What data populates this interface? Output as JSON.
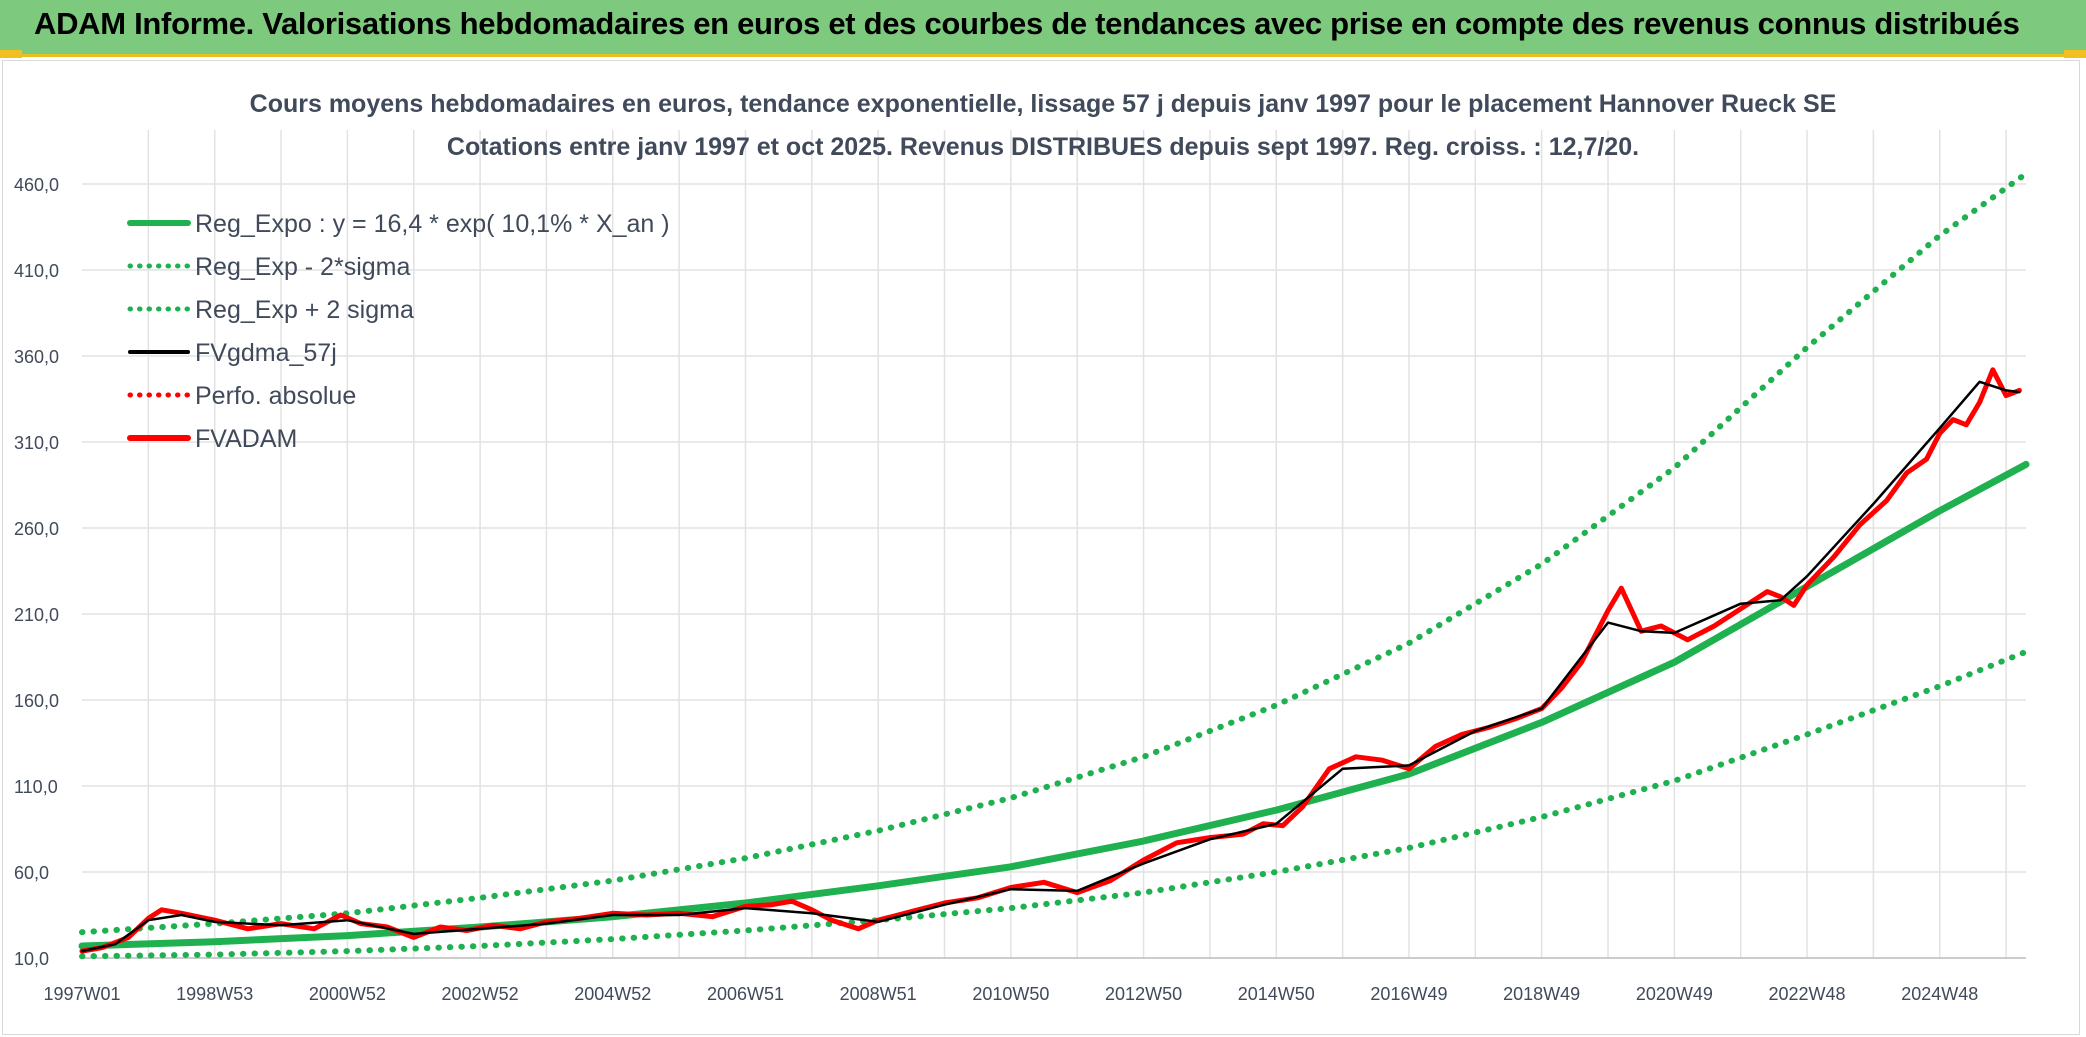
{
  "banner": {
    "title": "ADAM Informe. Valorisations hebdomadaires en euros et des courbes de tendances avec prise en compte des revenus connus distribués"
  },
  "colors": {
    "banner_bg": "#7dc97d",
    "reg_green": "#1fb04f",
    "sigma_green": "#1fb04f",
    "fvgdma": "#000000",
    "perfo": "#ff0000",
    "fvadam": "#ff0000",
    "grid": "#e2e2e2"
  },
  "chart_data": {
    "type": "line",
    "title_line1": "Cours moyens hebdomadaires en euros, tendance exponentielle, lissage 57 j depuis janv 1997 pour le placement Hannover Rueck SE",
    "title_line2": "Cotations entre janv 1997 et oct 2025. Revenus DISTRIBUES depuis sept 1997. Reg. croiss. : 12,7/20.",
    "y_ticks": [
      "10,0",
      "60,0",
      "110,0",
      "160,0",
      "210,0",
      "260,0",
      "310,0",
      "360,0",
      "410,0",
      "460,0"
    ],
    "ylim": [
      10,
      460
    ],
    "x_ticks": [
      "1997W01",
      "1998W53",
      "2000W52",
      "2002W52",
      "2004W52",
      "2006W51",
      "2008W51",
      "2010W50",
      "2012W50",
      "2014W50",
      "2016W49",
      "2018W49",
      "2020W49",
      "2022W48",
      "2024W48"
    ],
    "x_tick_years": [
      1997.0,
      1999.0,
      2001.0,
      2003.0,
      2005.0,
      2007.0,
      2009.0,
      2011.0,
      2013.0,
      2015.0,
      2017.0,
      2019.0,
      2021.0,
      2023.0,
      2025.0
    ],
    "xlim": [
      1997.0,
      2026.3
    ],
    "grid": true,
    "legend_position": "top-left",
    "legend": [
      {
        "label": "Reg_Expo : y = 16,4 * exp( 10,1% *  X_an )",
        "style": "solid-thick",
        "color": "#1fb04f"
      },
      {
        "label": "Reg_Exp - 2*sigma",
        "style": "dotted",
        "color": "#1fb04f"
      },
      {
        "label": "Reg_Exp + 2 sigma",
        "style": "dotted",
        "color": "#1fb04f"
      },
      {
        "label": "FVgdma_57j",
        "style": "solid",
        "color": "#000000"
      },
      {
        "label": "Perfo. absolue",
        "style": "dotted",
        "color": "#ff0000"
      },
      {
        "label": "FVADAM",
        "style": "solid-thick",
        "color": "#ff0000"
      }
    ],
    "series": [
      {
        "name": "Reg_Expo : y = 16,4 * exp( 10,1% *  X_an )",
        "x": [
          1997,
          1999,
          2001,
          2003,
          2005,
          2007,
          2009,
          2011,
          2013,
          2015,
          2017,
          2019,
          2021,
          2023,
          2025,
          2026.3
        ],
        "values": [
          17,
          19.5,
          23,
          28,
          34,
          42,
          52,
          63,
          78,
          96,
          117,
          147,
          182,
          226,
          270,
          297
        ]
      },
      {
        "name": "Reg_Exp - 2*sigma",
        "x": [
          1997,
          1999,
          2001,
          2003,
          2005,
          2007,
          2009,
          2011,
          2013,
          2015,
          2017,
          2019,
          2021,
          2023,
          2025,
          2026.3
        ],
        "values": [
          11,
          12,
          14,
          17,
          21,
          26,
          32,
          39,
          48,
          60,
          74,
          92,
          113,
          140,
          168,
          188
        ]
      },
      {
        "name": "Reg_Exp + 2 sigma",
        "x": [
          1997,
          1999,
          2001,
          2003,
          2005,
          2007,
          2009,
          2011,
          2013,
          2015,
          2017,
          2019,
          2021,
          2023,
          2025,
          2026.3
        ],
        "values": [
          25,
          30,
          36,
          45,
          55,
          68,
          84,
          103,
          127,
          157,
          193,
          239,
          295,
          365,
          430,
          466
        ]
      },
      {
        "name": "FVADAM",
        "x": [
          1997.0,
          1997.3,
          1997.7,
          1998.0,
          1998.2,
          1998.5,
          1999.0,
          1999.5,
          2000.0,
          2000.5,
          2000.9,
          2001.2,
          2001.6,
          2002.0,
          2002.4,
          2002.8,
          2003.2,
          2003.6,
          2004.0,
          2004.5,
          2005.0,
          2005.5,
          2006.0,
          2006.5,
          2007.0,
          2007.4,
          2007.7,
          2008.0,
          2008.3,
          2008.7,
          2009.0,
          2009.5,
          2010.0,
          2010.5,
          2011.0,
          2011.5,
          2012.0,
          2012.5,
          2013.0,
          2013.5,
          2014.0,
          2014.5,
          2014.8,
          2015.1,
          2015.4,
          2015.8,
          2016.2,
          2016.6,
          2017.0,
          2017.4,
          2017.8,
          2018.2,
          2018.6,
          2019.0,
          2019.3,
          2019.6,
          2020.0,
          2020.2,
          2020.5,
          2020.8,
          2021.2,
          2021.6,
          2022.0,
          2022.4,
          2022.6,
          2022.8,
          2023.0,
          2023.4,
          2023.8,
          2024.2,
          2024.5,
          2024.8,
          2025.0,
          2025.2,
          2025.4,
          2025.6,
          2025.8,
          2026.0,
          2026.2
        ],
        "values": [
          14,
          16,
          22,
          33,
          38,
          36,
          32,
          27,
          30,
          27,
          35,
          30,
          28,
          22,
          28,
          26,
          29,
          27,
          31,
          33,
          36,
          35,
          36,
          34,
          40,
          41,
          43,
          38,
          32,
          27,
          32,
          37,
          42,
          45,
          51,
          54,
          48,
          55,
          67,
          77,
          80,
          82,
          88,
          87,
          98,
          120,
          127,
          125,
          120,
          133,
          140,
          144,
          149,
          155,
          167,
          182,
          212,
          225,
          200,
          203,
          195,
          203,
          213,
          223,
          220,
          215,
          227,
          243,
          262,
          276,
          292,
          300,
          315,
          323,
          320,
          333,
          352,
          337,
          340
        ]
      },
      {
        "name": "FVgdma_57j",
        "x": [
          1997.0,
          1997.5,
          1998.0,
          1998.5,
          1999.0,
          2000.0,
          2001.0,
          2002.0,
          2003.0,
          2004.0,
          2005.0,
          2006.0,
          2007.0,
          2008.0,
          2009.0,
          2010.0,
          2011.0,
          2012.0,
          2013.0,
          2014.0,
          2015.0,
          2016.0,
          2017.0,
          2018.0,
          2019.0,
          2020.0,
          2020.5,
          2021.0,
          2022.0,
          2022.6,
          2023.0,
          2024.0,
          2025.0,
          2025.6,
          2026.0,
          2026.2
        ],
        "values": [
          14,
          18,
          32,
          35,
          31,
          29,
          32,
          24,
          27,
          30,
          35,
          35,
          39,
          36,
          31,
          41,
          50,
          49,
          65,
          79,
          88,
          120,
          122,
          142,
          155,
          205,
          200,
          199,
          216,
          218,
          232,
          274,
          318,
          345,
          340,
          339
        ]
      }
    ]
  }
}
